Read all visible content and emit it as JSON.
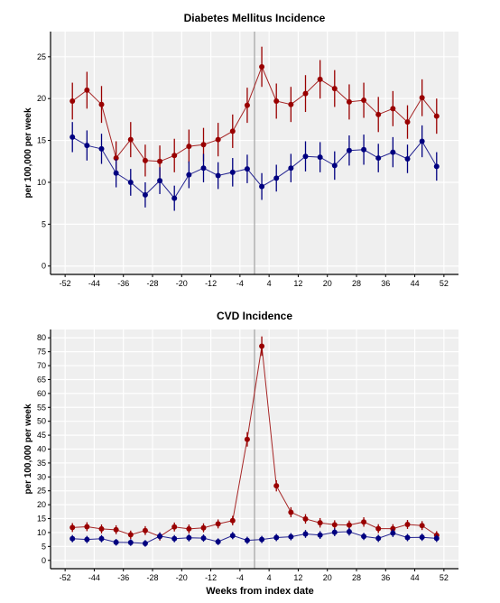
{
  "x_label": "Weeks from index date",
  "chart_data": [
    {
      "type": "line",
      "title": "Diabetes Mellitus Incidence",
      "ylabel": "per 100,000 per week",
      "xlabel": "",
      "xlim": [
        -56,
        56
      ],
      "ylim": [
        -1,
        28
      ],
      "x_ticks": [
        -52,
        -44,
        -36,
        -28,
        -20,
        -12,
        -4,
        4,
        12,
        20,
        28,
        36,
        44,
        52
      ],
      "y_ticks": [
        0,
        5,
        10,
        15,
        20,
        25
      ],
      "vline_x": 0,
      "grid": true,
      "x": [
        -50,
        -46,
        -42,
        -38,
        -34,
        -30,
        -26,
        -22,
        -18,
        -14,
        -10,
        -6,
        -2,
        2,
        6,
        10,
        14,
        18,
        22,
        26,
        30,
        34,
        38,
        42,
        46,
        50
      ],
      "series": [
        {
          "color": "#990000",
          "values": [
            19.7,
            21.0,
            19.3,
            12.9,
            15.1,
            12.6,
            12.5,
            13.2,
            14.3,
            14.5,
            15.1,
            16.1,
            19.2,
            23.8,
            19.7,
            19.3,
            20.6,
            22.3,
            21.2,
            19.6,
            19.8,
            18.1,
            18.8,
            17.2,
            20.1,
            17.9
          ],
          "err": [
            2.2,
            2.2,
            2.2,
            2.0,
            2.1,
            1.9,
            1.9,
            2.0,
            2.0,
            2.0,
            2.0,
            2.0,
            2.1,
            2.4,
            2.1,
            2.1,
            2.2,
            2.3,
            2.2,
            2.1,
            2.1,
            2.1,
            2.1,
            2.0,
            2.2,
            2.1
          ]
        },
        {
          "color": "#000080",
          "values": [
            15.4,
            14.4,
            14.0,
            11.1,
            10.0,
            8.5,
            10.2,
            8.1,
            10.9,
            11.7,
            10.8,
            11.2,
            11.6,
            9.5,
            10.5,
            11.7,
            13.1,
            13.0,
            12.0,
            13.8,
            13.9,
            12.9,
            13.6,
            12.8,
            14.9,
            11.9
          ],
          "err": [
            1.8,
            1.8,
            1.8,
            1.7,
            1.6,
            1.5,
            1.6,
            1.5,
            1.6,
            1.7,
            1.6,
            1.7,
            1.7,
            1.6,
            1.6,
            1.7,
            1.8,
            1.8,
            1.7,
            1.8,
            1.8,
            1.7,
            1.8,
            1.7,
            1.9,
            1.7
          ]
        }
      ]
    },
    {
      "type": "line",
      "title": "CVD Incidence",
      "ylabel": "per 100,000 per week",
      "xlabel": "Weeks from index date",
      "xlim": [
        -56,
        56
      ],
      "ylim": [
        -3,
        83
      ],
      "x_ticks": [
        -52,
        -44,
        -36,
        -28,
        -20,
        -12,
        -4,
        4,
        12,
        20,
        28,
        36,
        44,
        52
      ],
      "y_ticks": [
        0,
        5,
        10,
        15,
        20,
        25,
        30,
        35,
        40,
        45,
        50,
        55,
        60,
        65,
        70,
        75,
        80
      ],
      "vline_x": 0,
      "grid": true,
      "x": [
        -50,
        -46,
        -42,
        -38,
        -34,
        -30,
        -26,
        -22,
        -18,
        -14,
        -10,
        -6,
        -2,
        2,
        6,
        10,
        14,
        18,
        22,
        26,
        30,
        34,
        38,
        42,
        46,
        50
      ],
      "series": [
        {
          "color": "#990000",
          "values": [
            11.8,
            12.1,
            11.3,
            11.0,
            9.2,
            10.7,
            8.6,
            12.0,
            11.3,
            11.7,
            13.1,
            14.3,
            43.5,
            77.0,
            26.8,
            17.3,
            14.9,
            13.5,
            12.8,
            12.7,
            13.8,
            11.4,
            11.4,
            12.9,
            12.5,
            9.0
          ],
          "err": [
            1.6,
            1.6,
            1.6,
            1.6,
            1.5,
            1.6,
            1.5,
            1.6,
            1.6,
            1.6,
            1.6,
            1.7,
            2.6,
            3.5,
            2.0,
            1.8,
            1.7,
            1.7,
            1.6,
            1.6,
            1.7,
            1.6,
            1.6,
            1.6,
            1.6,
            1.5
          ]
        },
        {
          "color": "#000080",
          "values": [
            7.8,
            7.5,
            7.8,
            6.5,
            6.4,
            6.1,
            8.7,
            7.8,
            8.1,
            8.0,
            6.7,
            8.9,
            7.2,
            7.5,
            8.2,
            8.5,
            9.5,
            9.1,
            10.1,
            10.3,
            8.6,
            7.9,
            9.8,
            8.2,
            8.3,
            7.9
          ],
          "err": [
            1.3,
            1.3,
            1.3,
            1.2,
            1.2,
            1.2,
            1.3,
            1.3,
            1.3,
            1.3,
            1.2,
            1.3,
            1.3,
            1.3,
            1.3,
            1.3,
            1.4,
            1.4,
            1.4,
            1.4,
            1.3,
            1.3,
            1.4,
            1.3,
            1.3,
            1.3
          ]
        }
      ]
    }
  ]
}
